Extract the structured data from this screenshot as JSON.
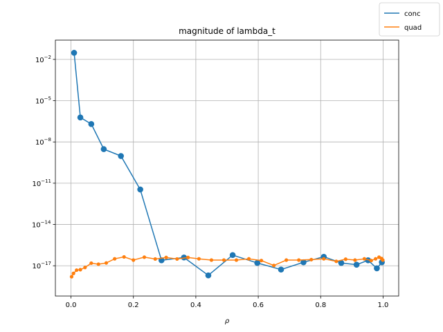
{
  "chart_data": {
    "type": "line",
    "title": "magnitude of lambda_t",
    "xlabel": "ρ",
    "ylabel": "",
    "yscale": "log",
    "xlim": [
      -0.05,
      1.05
    ],
    "ylim_log10": [
      -19.2,
      -0.6
    ],
    "xticks": [
      0.0,
      0.2,
      0.4,
      0.6,
      0.8,
      1.0
    ],
    "xtick_labels": [
      "0.0",
      "0.2",
      "0.4",
      "0.6",
      "0.8",
      "1.0"
    ],
    "ytick_exponents": [
      -2,
      -5,
      -8,
      -11,
      -14,
      -17
    ],
    "ytick_labels": [
      "10",
      "10",
      "10",
      "10",
      "10",
      "10"
    ],
    "ytick_superscripts": [
      "−2",
      "−5",
      "−8",
      "−11",
      "−14",
      "−17"
    ],
    "grid": true,
    "legend_placement": "top-right (outside axes)",
    "series": [
      {
        "name": "conc",
        "color": "#1f77b4",
        "marker": "circle-large",
        "x": [
          0.01,
          0.03,
          0.065,
          0.105,
          0.16,
          0.222,
          0.29,
          0.362,
          0.44,
          0.518,
          0.597,
          0.673,
          0.745,
          0.81,
          0.866,
          0.915,
          0.952,
          0.98,
          0.996
        ],
        "y": [
          0.03,
          6e-07,
          2e-07,
          3e-09,
          9.5e-10,
          3.5e-12,
          2.5e-17,
          4e-17,
          2e-18,
          6e-17,
          1.6e-17,
          5.3e-18,
          1.8e-17,
          4.5e-17,
          1.6e-17,
          1.2e-17,
          2.5e-17,
          6.5e-18,
          1.8e-17
        ]
      },
      {
        "name": "quad",
        "color": "#ff7f0e",
        "marker": "circle-small",
        "x": [
          0.002,
          0.008,
          0.018,
          0.03,
          0.045,
          0.065,
          0.088,
          0.113,
          0.14,
          0.17,
          0.2,
          0.235,
          0.27,
          0.305,
          0.34,
          0.375,
          0.41,
          0.45,
          0.49,
          0.53,
          0.57,
          0.61,
          0.65,
          0.69,
          0.73,
          0.77,
          0.81,
          0.85,
          0.88,
          0.91,
          0.94,
          0.962,
          0.976,
          0.987,
          0.995,
          0.999
        ],
        "y": [
          1.6e-18,
          2.8e-18,
          4.8e-18,
          5.2e-18,
          7.5e-18,
          1.55e-17,
          1.3e-17,
          1.6e-17,
          3.2e-17,
          4.4e-17,
          2.6e-17,
          4.2e-17,
          3.1e-17,
          4e-17,
          3.1e-17,
          4e-17,
          3.2e-17,
          2.6e-17,
          2.6e-17,
          2.6e-17,
          3.2e-17,
          2.4e-17,
          1.05e-17,
          2.6e-17,
          2.6e-17,
          2.8e-17,
          3.2e-17,
          2.1e-17,
          3e-17,
          2.6e-17,
          3.2e-17,
          2.4e-17,
          3.2e-17,
          4.2e-17,
          3.4e-17,
          2.6e-17
        ]
      }
    ]
  }
}
